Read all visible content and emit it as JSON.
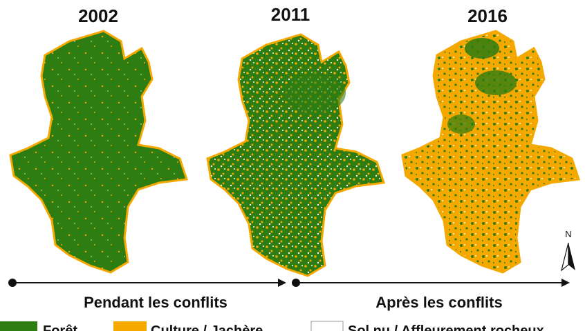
{
  "years": [
    "2002",
    "2011",
    "2016"
  ],
  "north": "N",
  "periods": [
    "Pendant les conflits",
    "Après les conflits"
  ],
  "legend": [
    "Forêt",
    "Culture / Jachère",
    "Sol nu / Affleurement rocheux"
  ]
}
